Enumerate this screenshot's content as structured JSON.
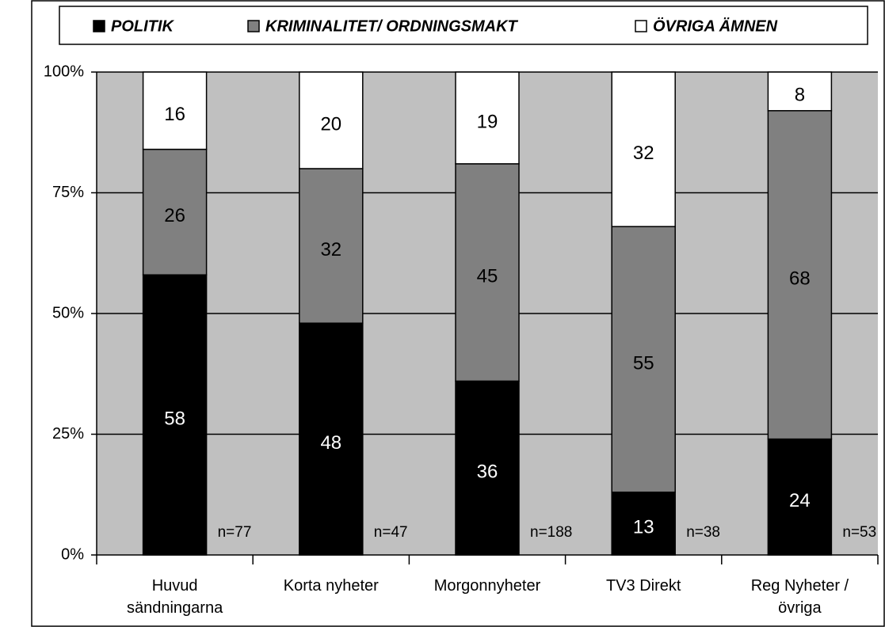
{
  "chart_data": {
    "type": "stacked_bar",
    "categories": [
      [
        "Huvud",
        "sändningarna"
      ],
      [
        "Korta  nyheter"
      ],
      [
        "Morgonnyheter"
      ],
      [
        "TV3  Direkt"
      ],
      [
        "Reg Nyheter /",
        "övriga"
      ]
    ],
    "series": [
      {
        "name": "POLITIK",
        "color": "#000000",
        "label_color": "#ffffff",
        "values": [
          58,
          48,
          36,
          13,
          24
        ]
      },
      {
        "name": "KRIMINALITET/ ORDNINGSMAKT",
        "color": "#808080",
        "label_color": "#000000",
        "values": [
          26,
          32,
          45,
          55,
          68
        ]
      },
      {
        "name": "ÖVRIGA ÄMNEN",
        "color": "#ffffff",
        "label_color": "#000000",
        "values": [
          16,
          20,
          19,
          32,
          8
        ]
      }
    ],
    "n_labels": [
      "n=77",
      "n=47",
      "n=188",
      "n=38",
      "n=53"
    ],
    "ylim": [
      0,
      100
    ],
    "yticks": [
      {
        "value": 0,
        "label": "0%"
      },
      {
        "value": 25,
        "label": "25%"
      },
      {
        "value": 50,
        "label": "50%"
      },
      {
        "value": 75,
        "label": "75%"
      },
      {
        "value": 100,
        "label": "100%"
      }
    ],
    "grid": true,
    "plot_background": "#c0c0c0",
    "legend": "top"
  }
}
